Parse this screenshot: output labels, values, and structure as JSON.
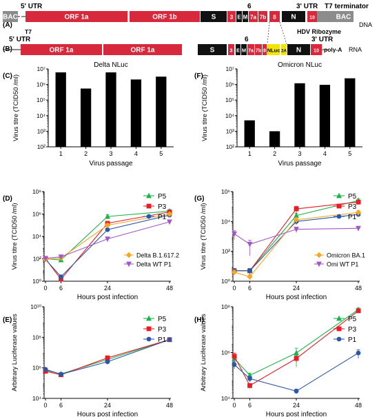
{
  "panel_labels": {
    "A": "(A)",
    "B": "(B)",
    "C": "(C)",
    "D": "(D)",
    "E": "(E)",
    "F": "(F)",
    "G": "(G)",
    "H": "(H)"
  },
  "genome_a": {
    "type_label": "DNA",
    "utr5": "5' UTR",
    "utr3": "3' UTR",
    "promoter": "T7",
    "terminator": "T7 terminator",
    "ribozyme": "HDV Ribozyme",
    "above6": "6",
    "segments": [
      {
        "label": "BAC",
        "color": "#8c8c8c",
        "text_color": "#ffffff"
      },
      {
        "label": "ORF 1a",
        "color": "#d7283c",
        "text_color": "#ffffff"
      },
      {
        "label": "ORF 1b",
        "color": "#d7283c",
        "text_color": "#ffffff"
      },
      {
        "label": "S",
        "color": "#111111",
        "text_color": "#ffffff"
      },
      {
        "label": "3",
        "color": "#d7283c",
        "text_color": "#ffffff"
      },
      {
        "label": "E",
        "color": "#111111",
        "text_color": "#ffffff"
      },
      {
        "label": "M",
        "color": "#111111",
        "text_color": "#ffffff"
      },
      {
        "label": "7a",
        "color": "#d7283c",
        "text_color": "#ffffff"
      },
      {
        "label": "7b",
        "color": "#d7283c",
        "text_color": "#ffffff"
      },
      {
        "label": "8",
        "color": "#d7283c",
        "text_color": "#ffffff"
      },
      {
        "label": "N",
        "color": "#111111",
        "text_color": "#ffffff"
      },
      {
        "label": "10",
        "color": "#d7283c",
        "text_color": "#ffffff"
      },
      {
        "label": "BAC",
        "color": "#8c8c8c",
        "text_color": "#ffffff"
      }
    ]
  },
  "genome_b": {
    "type_label": "RNA",
    "utr5": "5' UTR",
    "utr3": "3' UTR",
    "polya": "poly-A",
    "above6": "6",
    "segments": [
      {
        "label": "ORF 1a",
        "color": "#d7283c",
        "text_color": "#ffffff"
      },
      {
        "label": "ORF 1a",
        "color": "#d7283c",
        "text_color": "#ffffff"
      },
      {
        "label": "S",
        "color": "#111111",
        "text_color": "#ffffff"
      },
      {
        "label": "3",
        "color": "#d7283c",
        "text_color": "#ffffff"
      },
      {
        "label": "E",
        "color": "#111111",
        "text_color": "#ffffff"
      },
      {
        "label": "M",
        "color": "#111111",
        "text_color": "#ffffff"
      },
      {
        "label": "7a",
        "color": "#d7283c",
        "text_color": "#ffffff"
      },
      {
        "label": "7b",
        "color": "#d7283c",
        "text_color": "#ffffff"
      },
      {
        "label": "8",
        "color": "#d7283c",
        "text_color": "#ffffff"
      },
      {
        "label": "NLuc",
        "color": "#f2e600",
        "text_color": "#000000"
      },
      {
        "label": "2A",
        "color": "#f2e600",
        "text_color": "#000000"
      },
      {
        "label": "N",
        "color": "#111111",
        "text_color": "#ffffff"
      },
      {
        "label": "10",
        "color": "#d7283c",
        "text_color": "#ffffff"
      }
    ]
  },
  "colors": {
    "P5": "#19b34a",
    "P3": "#ea1c24",
    "P1": "#2b57a8",
    "orange": "#f5a623",
    "purple": "#a455c8"
  },
  "chart_data": [
    {
      "panel": "C",
      "type": "bar",
      "title": "Delta NLuc",
      "xlabel": "Virus passage",
      "ylabel": "Virus titre (TCID50 /ml)",
      "categories": [
        "1",
        "2",
        "3",
        "4",
        "5"
      ],
      "values": [
        6000000,
        550000,
        6000000,
        2100000,
        3200000
      ],
      "ylim": [
        100,
        10000000
      ],
      "yscale": "log",
      "grid": false,
      "ytick_labels": [
        "10²",
        "10³",
        "10⁴",
        "10⁵",
        "10⁶",
        "10⁷"
      ]
    },
    {
      "panel": "F",
      "type": "bar",
      "title": "Omicron NLuc",
      "xlabel": "Virus passage",
      "ylabel": "Virus titre (TCID50 /ml)",
      "categories": [
        "1",
        "2",
        "3",
        "4",
        "5"
      ],
      "values": [
        5000,
        1000,
        1200000,
        950000,
        2500000
      ],
      "ylim": [
        100,
        10000000
      ],
      "yscale": "log",
      "grid": false,
      "ytick_labels": [
        "10²",
        "10³",
        "10⁴",
        "10⁵",
        "10⁶",
        "10⁷"
      ]
    },
    {
      "panel": "D",
      "type": "line",
      "xlabel": "Hours post infection",
      "ylabel": "Virus titre (TCID50 /ml)",
      "x": [
        0,
        6,
        24,
        48
      ],
      "xtick_labels": [
        "0",
        "6",
        "24",
        "48"
      ],
      "ylim": [
        1,
        100000000
      ],
      "yscale": "log",
      "grid": false,
      "ytick_labels": [
        "10⁰",
        "10²",
        "10⁴",
        "10⁶",
        "10⁸"
      ],
      "legend_position": "right",
      "series": [
        {
          "name": "P5",
          "marker": "triangle-up",
          "values": [
            100,
            80,
            600000,
            1800000
          ],
          "errors": [
            40,
            30,
            250000,
            700000
          ]
        },
        {
          "name": "P3",
          "marker": "square",
          "values": [
            100,
            1.5,
            150000,
            1500000
          ],
          "errors": [
            40,
            0.6,
            60000,
            600000
          ]
        },
        {
          "name": "P1",
          "marker": "circle",
          "values": [
            90,
            2.5,
            40000,
            800000
          ],
          "errors": [
            30,
            1,
            15000,
            300000
          ]
        },
        {
          "name": "Delta B.1.617.2",
          "marker": "diamond",
          "values": [
            90,
            120,
            100000,
            1000000
          ],
          "errors": [
            30,
            40,
            40000,
            300000
          ]
        },
        {
          "name": "Delta WT P1",
          "marker": "triangle-down",
          "values": [
            110,
            150,
            6000,
            200000
          ],
          "errors": [
            40,
            50,
            2500,
            70000
          ]
        }
      ]
    },
    {
      "panel": "G",
      "type": "line",
      "xlabel": "Hours post infection",
      "ylabel": "Virus titre (TCID50 /ml)",
      "x": [
        0,
        6,
        24,
        48
      ],
      "xtick_labels": [
        "0",
        "6",
        "24",
        "48"
      ],
      "ylim": [
        1,
        1000000
      ],
      "yscale": "log",
      "grid": false,
      "ytick_labels": [
        "10⁰",
        "10²",
        "10⁴",
        "10⁶"
      ],
      "legend_position": "right",
      "series": [
        {
          "name": "P5",
          "marker": "triangle-up",
          "values": [
            5,
            5,
            25000,
            250000
          ],
          "errors": [
            2,
            2,
            10000,
            90000
          ]
        },
        {
          "name": "P3",
          "marker": "square",
          "values": [
            5,
            5,
            70000,
            200000
          ],
          "errors": [
            2,
            2,
            35000,
            70000
          ]
        },
        {
          "name": "P1",
          "marker": "circle",
          "values": [
            5,
            5,
            10000,
            30000
          ],
          "errors": [
            2,
            2,
            4000,
            10000
          ]
        },
        {
          "name": "Omicron BA.1",
          "marker": "diamond",
          "values": [
            4,
            2,
            13000,
            40000
          ],
          "errors": [
            1.5,
            0.8,
            5000,
            15000
          ]
        },
        {
          "name": "Omi WT P1",
          "marker": "triangle-down",
          "values": [
            1500,
            300,
            3000,
            3500
          ],
          "errors": [
            900,
            250,
            1200,
            1200
          ]
        }
      ]
    },
    {
      "panel": "E",
      "type": "line",
      "xlabel": "Hours post infection",
      "ylabel": "Arbitrary Luciferase values",
      "x": [
        0,
        6,
        24,
        48
      ],
      "xtick_labels": [
        "0",
        "6",
        "24",
        "48"
      ],
      "ylim": [
        10000,
        10000000000
      ],
      "yscale": "log",
      "grid": false,
      "ytick_labels": [
        "10⁴",
        "10⁶",
        "10⁸",
        "10¹⁰"
      ],
      "legend_position": "top-right",
      "series": [
        {
          "name": "P5",
          "marker": "triangle-up",
          "values": [
            700000,
            400000,
            3500000,
            70000000
          ],
          "errors": [
            200000,
            80000,
            1000000,
            10000000
          ]
        },
        {
          "name": "P3",
          "marker": "square",
          "values": [
            600000,
            350000,
            4500000,
            70000000
          ],
          "errors": [
            200000,
            80000,
            1500000,
            10000000
          ]
        },
        {
          "name": "P1",
          "marker": "circle",
          "values": [
            800000,
            380000,
            2500000,
            70000000
          ],
          "errors": [
            200000,
            80000,
            800000,
            10000000
          ]
        }
      ]
    },
    {
      "panel": "H",
      "type": "line",
      "xlabel": "Hours post infection",
      "ylabel": "Arbitrary Luciferase values",
      "x": [
        0,
        6,
        24,
        48
      ],
      "xtick_labels": [
        "0",
        "6",
        "24",
        "48"
      ],
      "ylim": [
        1000,
        100000000
      ],
      "yscale": "log",
      "grid": false,
      "ytick_labels": [
        "10⁴",
        "10⁶",
        "10⁸"
      ],
      "legend_position": "top-right",
      "series": [
        {
          "name": "P5",
          "marker": "triangle-up",
          "values": [
            150000,
            18000,
            300000,
            70000000
          ],
          "errors": [
            80000,
            6000,
            250000,
            15000000
          ]
        },
        {
          "name": "P3",
          "marker": "square",
          "values": [
            200000,
            5000,
            150000,
            60000000
          ],
          "errors": [
            100000,
            1500,
            60000,
            15000000
          ]
        },
        {
          "name": "P1",
          "marker": "circle",
          "values": [
            70000,
            12000,
            2500,
            300000
          ],
          "errors": [
            30000,
            4000,
            700,
            150000
          ]
        }
      ]
    }
  ]
}
